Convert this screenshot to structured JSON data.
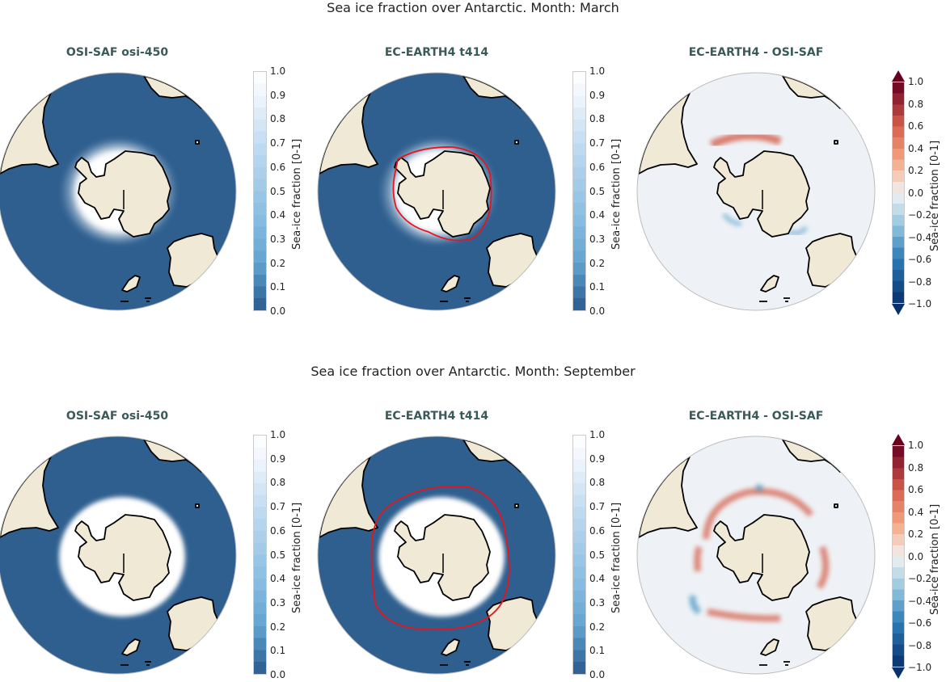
{
  "rows": [
    {
      "title": "Sea ice fraction over Antarctic. Month: March",
      "month": "March",
      "panels": [
        {
          "title": "OSI-SAF osi-450",
          "kind": "obs"
        },
        {
          "title": "EC-EARTH4 t414",
          "kind": "model"
        },
        {
          "title": "EC-EARTH4 -  OSI-SAF",
          "kind": "diff"
        }
      ]
    },
    {
      "title": "Sea ice fraction over Antarctic. Month: September",
      "month": "September",
      "panels": [
        {
          "title": "OSI-SAF osi-450",
          "kind": "obs"
        },
        {
          "title": "EC-EARTH4 t414",
          "kind": "model"
        },
        {
          "title": "EC-EARTH4 -  OSI-SAF",
          "kind": "diff"
        }
      ]
    }
  ],
  "colorbars": {
    "fraction": {
      "label": "Sea-ice fraction [0-1]",
      "ticks": [
        "1.0",
        "0.9",
        "0.8",
        "0.7",
        "0.6",
        "0.5",
        "0.4",
        "0.3",
        "0.2",
        "0.1",
        "0.0"
      ],
      "range": [
        0,
        1
      ]
    },
    "difference": {
      "label": "Sea-ice fraction [0-1]",
      "ticks": [
        "1.0",
        "0.8",
        "0.6",
        "0.4",
        "0.2",
        "0.0",
        "−0.2",
        "−0.4",
        "−0.6",
        "−0.8",
        "−1.0"
      ],
      "range": [
        -1,
        1
      ]
    }
  },
  "colors": {
    "ocean": "#2f5f8f",
    "land": "#efe9d6",
    "ice": "#ffffff",
    "diff_background": "#eef2f6",
    "contour": "#e8141c",
    "positive": "#d6604d",
    "negative": "#4393c3"
  }
}
